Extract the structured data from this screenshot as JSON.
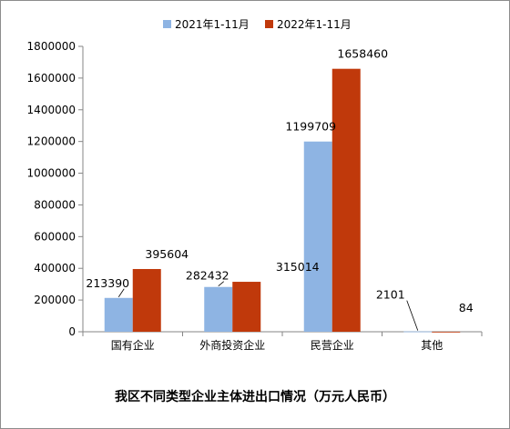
{
  "chart_data": {
    "type": "bar",
    "title": "我区不同类型企业主体进出口情况（万元人民币）",
    "categories": [
      "国有企业",
      "外商投资企业",
      "民营企业",
      "其他"
    ],
    "series": [
      {
        "name": "2021年1-11月",
        "color": "#8eb4e3",
        "values": [
          213390,
          282432,
          1199709,
          2101
        ]
      },
      {
        "name": "2022年1-11月",
        "color": "#c0390b",
        "values": [
          395604,
          315014,
          1658460,
          84
        ]
      }
    ],
    "ylim": [
      0,
      1800000
    ],
    "yticks": [
      "0",
      "200000",
      "400000",
      "600000",
      "800000",
      "1000000",
      "1200000",
      "1400000",
      "1600000",
      "1800000"
    ],
    "legend_position": "top",
    "grid": false
  }
}
